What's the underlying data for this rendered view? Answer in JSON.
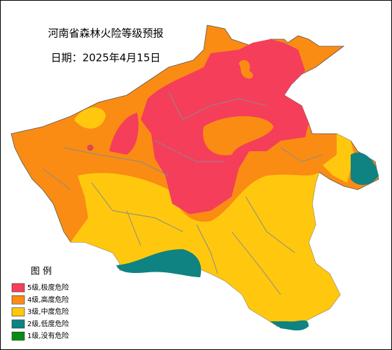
{
  "title": "河南省森林火险等级预报",
  "date": "日期：2025年4月15日",
  "legend": {
    "title": "图  例",
    "items": [
      {
        "label": "5级,极度危险",
        "color": "#f53e5a"
      },
      {
        "label": "4级,高度危险",
        "color": "#fa8c14"
      },
      {
        "label": "3级,中度危险",
        "color": "#ffc80f"
      },
      {
        "label": "2级,低度危险",
        "color": "#0f8282"
      },
      {
        "label": "1级,没有危险",
        "color": "#0a8c14"
      }
    ]
  }
}
